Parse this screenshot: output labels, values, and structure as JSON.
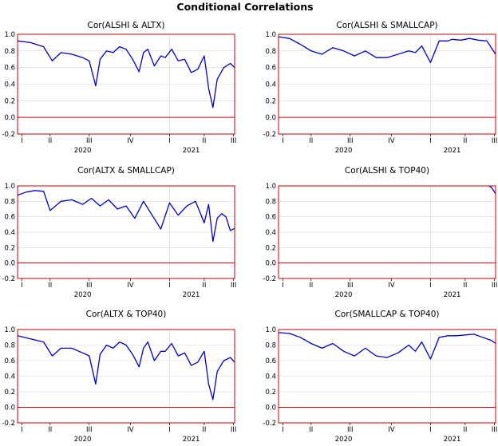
{
  "figure": {
    "title": "Conditional Correlations"
  },
  "chart_data": [
    {
      "type": "line",
      "title": "Cor(ALSHI & ALTX)",
      "ylim": [
        -0.2,
        1.0
      ],
      "yticks": [
        "1.0",
        "0.8",
        "0.6",
        "0.4",
        "0.2",
        "0.0",
        "-0.2"
      ],
      "quarters": [
        "I",
        "II",
        "III",
        "IV",
        "I",
        "II",
        "III"
      ],
      "years": [
        "2020",
        "2021"
      ],
      "reference_line": 0.0,
      "line_color": "#0000cc",
      "frame_color": "#cc0000",
      "x": [
        0,
        0.06,
        0.12,
        0.16,
        0.2,
        0.25,
        0.3,
        0.33,
        0.36,
        0.38,
        0.41,
        0.44,
        0.47,
        0.5,
        0.53,
        0.56,
        0.58,
        0.6,
        0.63,
        0.66,
        0.68,
        0.71,
        0.74,
        0.77,
        0.8,
        0.83,
        0.86,
        0.88,
        0.9,
        0.92,
        0.95,
        0.98,
        1.0
      ],
      "values": [
        0.92,
        0.9,
        0.85,
        0.68,
        0.78,
        0.76,
        0.72,
        0.68,
        0.38,
        0.7,
        0.8,
        0.78,
        0.85,
        0.82,
        0.7,
        0.55,
        0.78,
        0.82,
        0.62,
        0.74,
        0.72,
        0.82,
        0.68,
        0.7,
        0.54,
        0.58,
        0.74,
        0.35,
        0.12,
        0.46,
        0.6,
        0.65,
        0.6
      ]
    },
    {
      "type": "line",
      "title": "Cor(ALSHI & SMALLCAP)",
      "ylim": [
        -0.2,
        1.0
      ],
      "yticks": [
        "1.0",
        "0.8",
        "0.6",
        "0.4",
        "0.2",
        "0.0",
        "-0.2"
      ],
      "quarters": [
        "I",
        "II",
        "III",
        "IV",
        "I",
        "II",
        "III"
      ],
      "years": [
        "2020",
        "2021"
      ],
      "reference_line": 0.0,
      "line_color": "#0000cc",
      "frame_color": "#cc0000",
      "x": [
        0,
        0.05,
        0.1,
        0.15,
        0.2,
        0.25,
        0.3,
        0.35,
        0.4,
        0.45,
        0.5,
        0.55,
        0.6,
        0.63,
        0.66,
        0.7,
        0.74,
        0.78,
        0.8,
        0.84,
        0.88,
        0.92,
        0.96,
        1.0
      ],
      "values": [
        0.97,
        0.95,
        0.88,
        0.8,
        0.76,
        0.84,
        0.8,
        0.74,
        0.8,
        0.72,
        0.72,
        0.76,
        0.8,
        0.78,
        0.86,
        0.66,
        0.92,
        0.92,
        0.94,
        0.93,
        0.95,
        0.93,
        0.92,
        0.76
      ]
    },
    {
      "type": "line",
      "title": "Cor(ALTX & SMALLCAP)",
      "ylim": [
        -0.2,
        1.0
      ],
      "yticks": [
        "1.0",
        "0.8",
        "0.6",
        "0.4",
        "0.2",
        "0.0",
        "-0.2"
      ],
      "quarters": [
        "I",
        "II",
        "III",
        "IV",
        "I",
        "II",
        "III"
      ],
      "years": [
        "2020",
        "2021"
      ],
      "reference_line": 0.0,
      "line_color": "#0000cc",
      "frame_color": "#cc0000",
      "x": [
        0,
        0.04,
        0.08,
        0.12,
        0.15,
        0.2,
        0.25,
        0.3,
        0.34,
        0.38,
        0.42,
        0.46,
        0.5,
        0.54,
        0.58,
        0.62,
        0.66,
        0.7,
        0.74,
        0.78,
        0.82,
        0.86,
        0.88,
        0.9,
        0.92,
        0.94,
        0.96,
        0.98,
        1.0
      ],
      "values": [
        0.88,
        0.92,
        0.94,
        0.93,
        0.68,
        0.8,
        0.82,
        0.76,
        0.84,
        0.74,
        0.82,
        0.7,
        0.74,
        0.58,
        0.8,
        0.62,
        0.44,
        0.78,
        0.62,
        0.74,
        0.8,
        0.52,
        0.76,
        0.28,
        0.58,
        0.64,
        0.6,
        0.42,
        0.45
      ]
    },
    {
      "type": "line",
      "title": "Cor(ALSHI & TOP40)",
      "ylim": [
        -0.2,
        1.0
      ],
      "yticks": [
        "1.0",
        "0.8",
        "0.6",
        "0.4",
        "0.2",
        "0.0",
        "-0.2"
      ],
      "quarters": [
        "I",
        "II",
        "III",
        "IV",
        "I",
        "II",
        "III"
      ],
      "years": [
        "2020",
        "2021"
      ],
      "reference_line": 0.0,
      "line_color": "#0000cc",
      "frame_color": "#cc0000",
      "x": [
        0.97,
        0.98,
        0.99,
        1.0
      ],
      "values": [
        1.0,
        0.98,
        0.94,
        0.9
      ]
    },
    {
      "type": "line",
      "title": "Cor(ALTX & TOP40)",
      "ylim": [
        -0.2,
        1.0
      ],
      "yticks": [
        "1.0",
        "0.8",
        "0.6",
        "0.4",
        "0.2",
        "0.0",
        "-0.2"
      ],
      "quarters": [
        "I",
        "II",
        "III",
        "IV",
        "I",
        "II",
        "III"
      ],
      "years": [
        "2020",
        "2021"
      ],
      "reference_line": 0.0,
      "line_color": "#0000cc",
      "frame_color": "#cc0000",
      "x": [
        0,
        0.06,
        0.12,
        0.16,
        0.2,
        0.25,
        0.3,
        0.33,
        0.36,
        0.38,
        0.41,
        0.44,
        0.47,
        0.5,
        0.53,
        0.56,
        0.58,
        0.6,
        0.63,
        0.66,
        0.68,
        0.71,
        0.74,
        0.77,
        0.8,
        0.83,
        0.86,
        0.88,
        0.9,
        0.92,
        0.95,
        0.98,
        1.0
      ],
      "values": [
        0.92,
        0.88,
        0.84,
        0.66,
        0.76,
        0.76,
        0.7,
        0.66,
        0.3,
        0.68,
        0.8,
        0.76,
        0.84,
        0.8,
        0.68,
        0.52,
        0.76,
        0.84,
        0.6,
        0.72,
        0.72,
        0.82,
        0.66,
        0.7,
        0.54,
        0.58,
        0.72,
        0.3,
        0.1,
        0.46,
        0.6,
        0.64,
        0.58
      ]
    },
    {
      "type": "line",
      "title": "Cor(SMALLCAP & TOP40)",
      "ylim": [
        -0.2,
        1.0
      ],
      "yticks": [
        "1.0",
        "0.8",
        "0.6",
        "0.4",
        "0.2",
        "0.0",
        "-0.2"
      ],
      "quarters": [
        "I",
        "II",
        "III",
        "IV",
        "I",
        "II",
        "III"
      ],
      "years": [
        "2020",
        "2021"
      ],
      "reference_line": 0.0,
      "line_color": "#0000cc",
      "frame_color": "#cc0000",
      "x": [
        0,
        0.05,
        0.1,
        0.15,
        0.2,
        0.25,
        0.3,
        0.35,
        0.4,
        0.45,
        0.5,
        0.55,
        0.6,
        0.63,
        0.66,
        0.7,
        0.74,
        0.78,
        0.82,
        0.86,
        0.9,
        0.94,
        0.98,
        1.0
      ],
      "values": [
        0.96,
        0.95,
        0.9,
        0.82,
        0.76,
        0.82,
        0.72,
        0.66,
        0.76,
        0.66,
        0.64,
        0.7,
        0.8,
        0.72,
        0.84,
        0.62,
        0.9,
        0.92,
        0.92,
        0.93,
        0.94,
        0.9,
        0.86,
        0.82
      ]
    }
  ]
}
